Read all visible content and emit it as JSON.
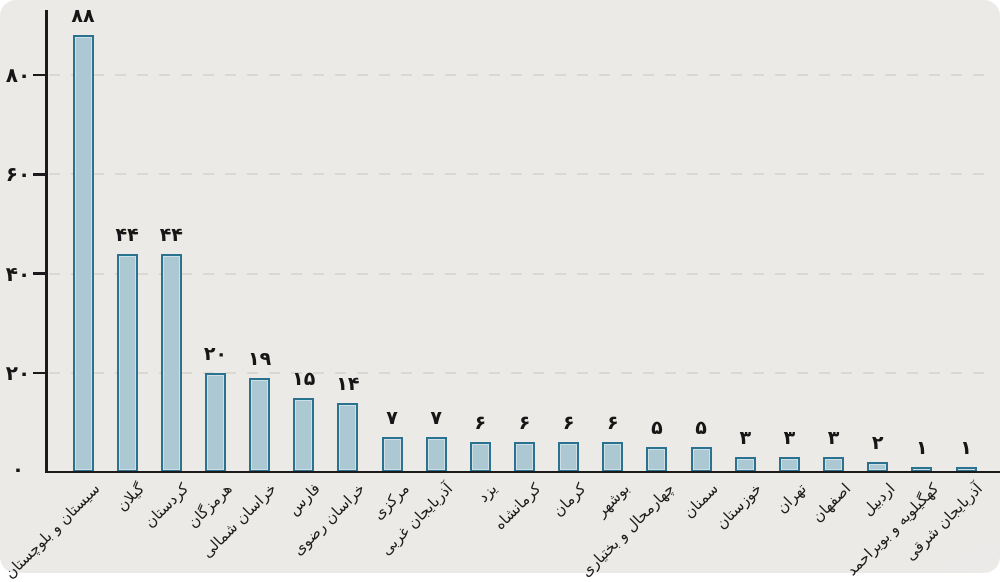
{
  "chart_data": {
    "type": "bar",
    "title": "",
    "xlabel": "",
    "ylabel": "",
    "language": "fa",
    "categories": [
      "سیستان و بلوچستان",
      "گیلان",
      "کردستان",
      "هرمزگان",
      "خراسان شمالی",
      "فارس",
      "خراسان رضوی",
      "مرکزی",
      "آذربایجان غربی",
      "یزد",
      "کرمانشاه",
      "کرمان",
      "بوشهر",
      "چهارمحال و بختیاری",
      "سمنان",
      "خوزستان",
      "تهران",
      "اصفهان",
      "اردبیل",
      "کهگیلویه و بویراحمد",
      "آذربایجان شرقی"
    ],
    "values": [
      88,
      44,
      44,
      20,
      19,
      15,
      14,
      7,
      7,
      6,
      6,
      6,
      6,
      5,
      5,
      3,
      3,
      3,
      2,
      1,
      1
    ],
    "value_labels": [
      "۸۸",
      "۴۴",
      "۴۴",
      "۲۰",
      "۱۹",
      "۱۵",
      "۱۴",
      "۷",
      "۷",
      "۶",
      "۶",
      "۶",
      "۶",
      "۵",
      "۵",
      "۳",
      "۳",
      "۳",
      "۲",
      "۱",
      "۱"
    ],
    "y_ticks": [
      {
        "value": 0,
        "label": "۰"
      },
      {
        "value": 20,
        "label": "۲۰"
      },
      {
        "value": 40,
        "label": "۴۰"
      },
      {
        "value": 60,
        "label": "۶۰"
      },
      {
        "value": 80,
        "label": "۸۰"
      }
    ],
    "ylim": [
      0,
      90
    ],
    "grid": "horizontal dashed lines at 20, 40, 60, 80",
    "legend_position": "none",
    "colors": {
      "bar_fill": "#abc8d3",
      "bar_border": "#2b7291",
      "axis": "#1b1b1b",
      "grid": "#dbd7d2",
      "background": "#eceae7",
      "text": "#161616"
    }
  }
}
